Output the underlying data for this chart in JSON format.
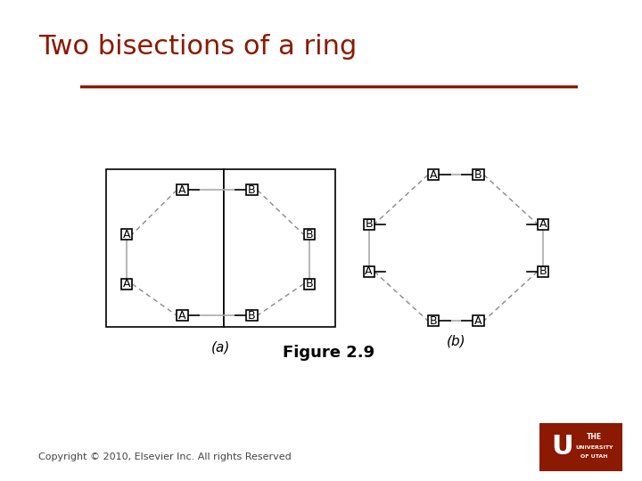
{
  "title": "Two bisections of a ring",
  "title_color": "#8B1A00",
  "title_fontsize": 22,
  "bg_color": "#ffffff",
  "line_color": "#000000",
  "gray_line_color": "#aaaaaa",
  "dashed_line_color": "#888888",
  "caption_a": "(a)",
  "caption_b": "(b)",
  "figure_caption": "Figure 2.9",
  "copyright": "Copyright © 2010, Elsevier Inc. All rights Reserved",
  "hr_color": "#8B1A00"
}
